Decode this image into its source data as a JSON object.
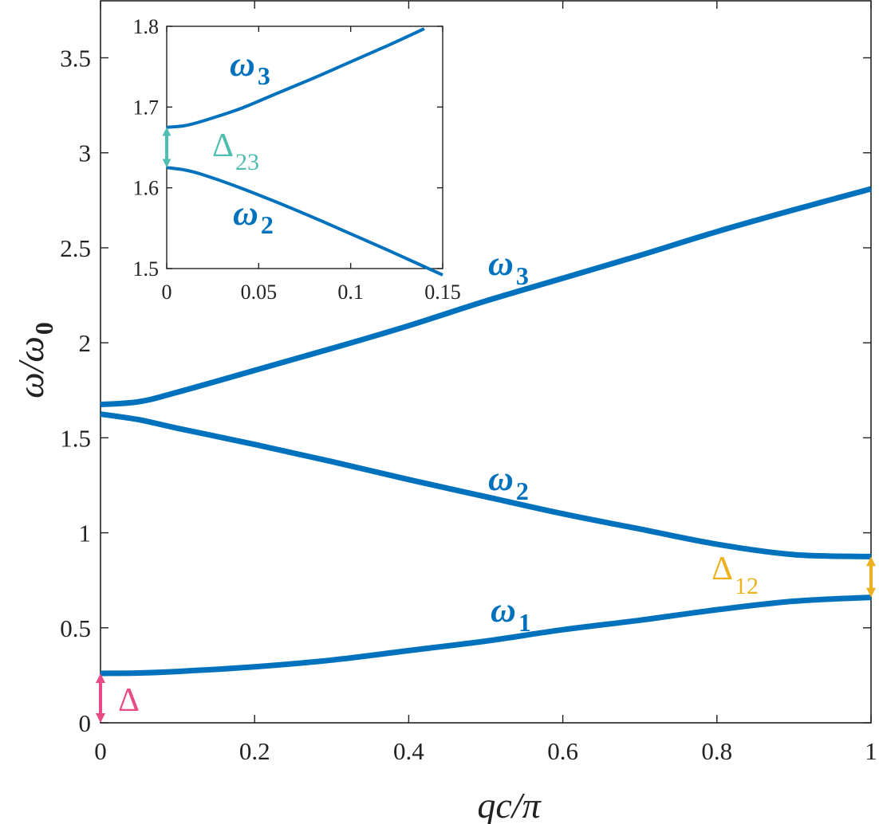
{
  "chart_data": [
    {
      "type": "line",
      "xlabel": "qc/π",
      "ylabel": "ω/ω0",
      "xlabel_parts": {
        "main": "qc/π"
      },
      "ylabel_parts": {
        "main": "ω/ω",
        "sub": "0"
      },
      "xlim": [
        0,
        1
      ],
      "ylim": [
        0,
        3.8
      ],
      "xticks": [
        "0",
        "0.2",
        "0.4",
        "0.6",
        "0.8",
        "1"
      ],
      "xtick_values": [
        0,
        0.2,
        0.4,
        0.6,
        0.8,
        1
      ],
      "yticks": [
        "0",
        "0.5",
        "1",
        "1.5",
        "2",
        "2.5",
        "3",
        "3.5"
      ],
      "ytick_values": [
        0,
        0.5,
        1,
        1.5,
        2,
        2.5,
        3,
        3.5
      ],
      "grid": false,
      "series_color": "#0072BD",
      "series": [
        {
          "name": "ω1",
          "label_main": "ω",
          "label_sub": "1",
          "x": [
            0,
            0.05,
            0.1,
            0.2,
            0.3,
            0.4,
            0.5,
            0.6,
            0.7,
            0.8,
            0.9,
            1.0
          ],
          "y": [
            0.26,
            0.262,
            0.27,
            0.295,
            0.33,
            0.38,
            0.43,
            0.49,
            0.54,
            0.595,
            0.64,
            0.66
          ]
        },
        {
          "name": "ω2",
          "label_main": "ω",
          "label_sub": "2",
          "x": [
            0,
            0.05,
            0.1,
            0.2,
            0.3,
            0.4,
            0.5,
            0.6,
            0.7,
            0.8,
            0.9,
            1.0
          ],
          "y": [
            1.625,
            1.595,
            1.55,
            1.465,
            1.375,
            1.28,
            1.19,
            1.1,
            1.02,
            0.94,
            0.885,
            0.875
          ]
        },
        {
          "name": "ω3",
          "label_main": "ω",
          "label_sub": "3",
          "x": [
            0,
            0.05,
            0.1,
            0.2,
            0.3,
            0.4,
            0.5,
            0.6,
            0.7,
            0.8,
            0.9,
            1.0
          ],
          "y": [
            1.675,
            1.69,
            1.74,
            1.855,
            1.97,
            2.09,
            2.22,
            2.34,
            2.46,
            2.585,
            2.7,
            2.81
          ]
        }
      ],
      "annotations": [
        {
          "text": "Δ",
          "sub": "",
          "color": "#E84A86",
          "x": 0,
          "y_from": 0,
          "y_to": 0.26
        },
        {
          "text": "Δ",
          "sub": "12",
          "color": "#EDB120",
          "x": 1,
          "y_from": 0.66,
          "y_to": 0.875
        }
      ]
    },
    {
      "type": "line",
      "role": "inset",
      "xlim": [
        0,
        0.15
      ],
      "ylim": [
        1.5,
        1.8
      ],
      "xticks": [
        "0",
        "0.05",
        "0.1",
        "0.15"
      ],
      "xtick_values": [
        0,
        0.05,
        0.1,
        0.15
      ],
      "yticks": [
        "1.5",
        "1.6",
        "1.7",
        "1.8"
      ],
      "ytick_values": [
        1.5,
        1.6,
        1.7,
        1.8
      ],
      "grid": false,
      "series": [
        {
          "name": "ω2",
          "label_main": "ω",
          "label_sub": "2",
          "x": [
            0,
            0.01,
            0.02,
            0.04,
            0.06,
            0.08,
            0.1,
            0.12,
            0.15
          ],
          "y": [
            1.625,
            1.622,
            1.616,
            1.6,
            1.582,
            1.563,
            1.543,
            1.523,
            1.492
          ]
        },
        {
          "name": "ω3",
          "label_main": "ω",
          "label_sub": "3",
          "x": [
            0,
            0.01,
            0.02,
            0.04,
            0.06,
            0.08,
            0.1,
            0.12,
            0.14
          ],
          "y": [
            1.675,
            1.677,
            1.683,
            1.698,
            1.717,
            1.736,
            1.756,
            1.776,
            1.797
          ]
        }
      ],
      "annotations": [
        {
          "text": "Δ",
          "sub": "23",
          "color": "#4DBEB0",
          "x": 0,
          "y_from": 1.625,
          "y_to": 1.675
        }
      ]
    }
  ]
}
